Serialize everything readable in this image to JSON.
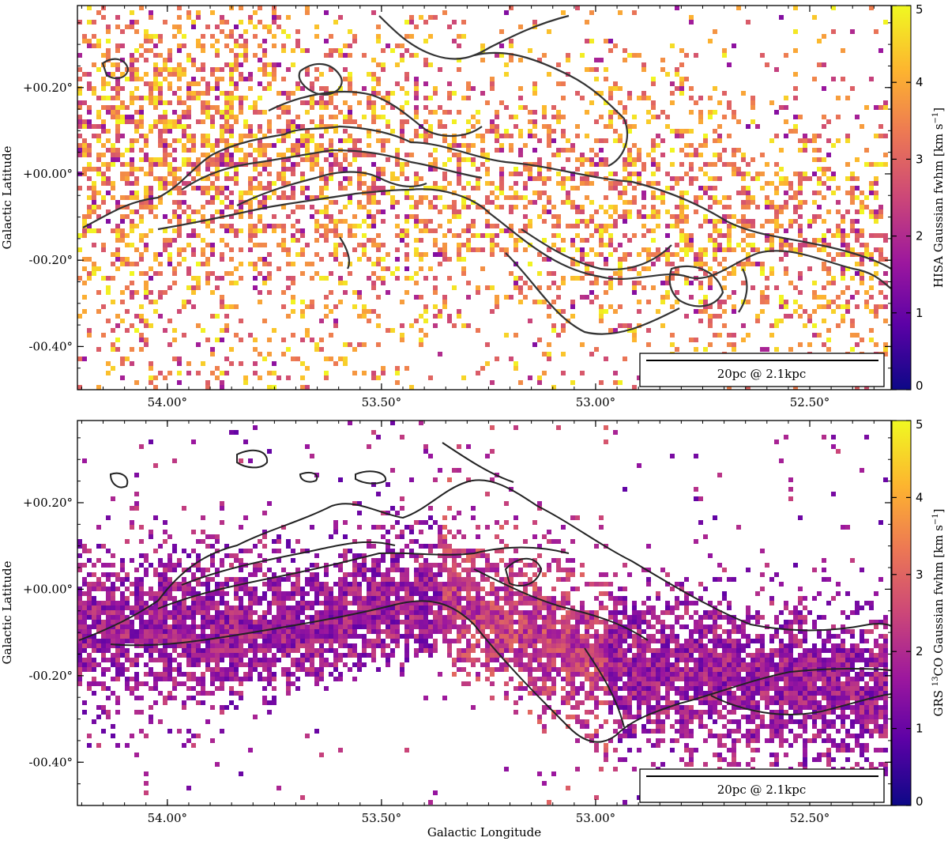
{
  "chart_data": [
    {
      "type": "heatmap",
      "panel": "top",
      "xlabel": "",
      "ylabel": "Galactic Latitude",
      "x_ticks": [
        54.0,
        53.5,
        53.0,
        52.5
      ],
      "x_tick_labels": [
        "54.00°",
        "53.50°",
        "53.00°",
        "52.50°"
      ],
      "y_ticks": [
        0.2,
        0.0,
        -0.2,
        -0.4
      ],
      "y_tick_labels": [
        "+00.20°",
        "+00.00°",
        "-00.20°",
        "-00.40°"
      ],
      "xlim": [
        54.21,
        52.31
      ],
      "ylim": [
        -0.5,
        0.39
      ],
      "colorbar": {
        "label_text": "HISA Gaussian fwhm [km s",
        "label_sup": "−1",
        "label_end": "]",
        "range": [
          0,
          5
        ],
        "ticks": [
          0,
          1,
          2,
          3,
          4,
          5
        ],
        "tick_labels": [
          "0",
          "1",
          "2",
          "3",
          "4",
          "5"
        ],
        "colormap": "plasma"
      },
      "scalebar_label": "20pc @ 2.1kpc",
      "contour_color": "#333333"
    },
    {
      "type": "heatmap",
      "panel": "bottom",
      "xlabel": "Galactic Longitude",
      "ylabel": "Galactic Latitude",
      "x_ticks": [
        54.0,
        53.5,
        53.0,
        52.5
      ],
      "x_tick_labels": [
        "54.00°",
        "53.50°",
        "53.00°",
        "52.50°"
      ],
      "y_ticks": [
        0.2,
        0.0,
        -0.2,
        -0.4
      ],
      "y_tick_labels": [
        "+00.20°",
        "+00.00°",
        "-00.20°",
        "-00.40°"
      ],
      "xlim": [
        54.21,
        52.31
      ],
      "ylim": [
        -0.5,
        0.39
      ],
      "colorbar": {
        "label_text": "GRS ",
        "label_sup_pre": "13",
        "label_text_2": "CO Gaussian fwhm [km s",
        "label_sup": "−1",
        "label_end": "]",
        "range": [
          0,
          5
        ],
        "ticks": [
          0,
          1,
          2,
          3,
          4,
          5
        ],
        "tick_labels": [
          "0",
          "1",
          "2",
          "3",
          "4",
          "5"
        ],
        "colormap": "plasma"
      },
      "scalebar_label": "20pc @ 2.1kpc",
      "contour_color": "#222222"
    }
  ],
  "colors": {
    "plasma_stops": [
      "#0d0887",
      "#5c01a6",
      "#9c179e",
      "#cc4778",
      "#ed7953",
      "#fdb42f",
      "#f0f921"
    ]
  }
}
